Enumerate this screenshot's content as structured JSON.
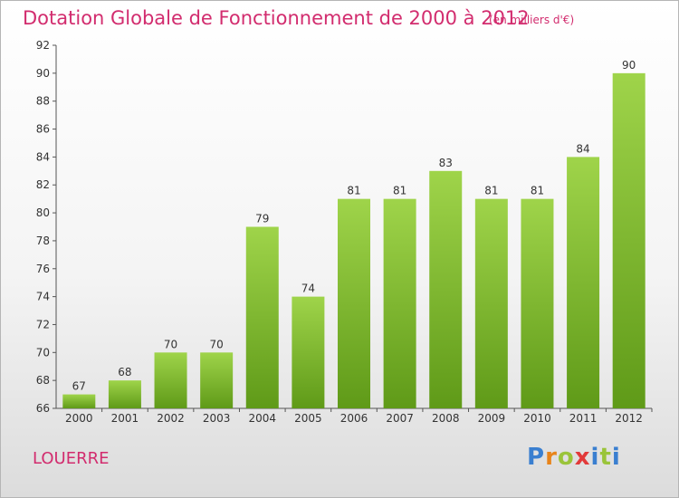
{
  "chart_data": {
    "type": "bar",
    "title": "Dotation Globale de Fonctionnement de 2000 à 2012",
    "subtitle": "(en milliers d'€)",
    "categories": [
      "2000",
      "2001",
      "2002",
      "2003",
      "2004",
      "2005",
      "2006",
      "2007",
      "2008",
      "2009",
      "2010",
      "2011",
      "2012"
    ],
    "values": [
      67,
      68,
      70,
      70,
      79,
      74,
      81,
      81,
      83,
      81,
      81,
      84,
      90
    ],
    "ylim": [
      66,
      92
    ],
    "yticks": [
      66,
      68,
      70,
      72,
      74,
      76,
      78,
      80,
      82,
      84,
      86,
      88,
      90,
      92
    ],
    "grid": false,
    "bar_color": "#7cbb2c",
    "xlabel": "",
    "ylabel": ""
  },
  "footer": {
    "commune": "LOUERRE"
  },
  "logo": {
    "letters": [
      "P",
      "r",
      "o",
      "x",
      "i",
      "t",
      "i"
    ],
    "colors": [
      "#3a7fd0",
      "#e8841a",
      "#9ac43a",
      "#e23a3a",
      "#3a7fd0",
      "#9ac43a",
      "#3a7fd0"
    ]
  }
}
